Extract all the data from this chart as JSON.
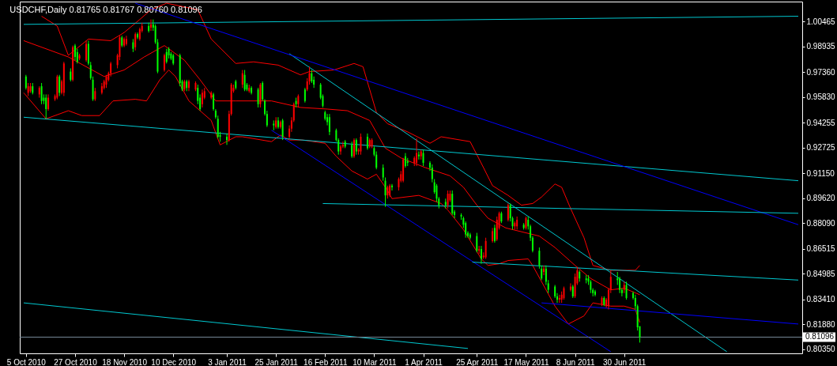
{
  "chart_data": {
    "type": "candlestick",
    "title": "USDCHF,Daily 0.81765 0.81767 0.80760 0.81096",
    "x": [
      "2010-10-05",
      "2010-10-06",
      "2010-10-07",
      "2010-10-08",
      "2010-10-11",
      "2010-10-12",
      "2010-10-13",
      "2010-10-14",
      "2010-10-15",
      "2010-10-18",
      "2010-10-19",
      "2010-10-20",
      "2010-10-21",
      "2010-10-22",
      "2010-10-25",
      "2010-10-26",
      "2010-10-27",
      "2010-10-28",
      "2010-10-29",
      "2010-11-01",
      "2010-11-02",
      "2010-11-03",
      "2010-11-04",
      "2010-11-05",
      "2010-11-08",
      "2010-11-09",
      "2010-11-10",
      "2010-11-11",
      "2010-11-12",
      "2010-11-15",
      "2010-11-16",
      "2010-11-17",
      "2010-11-18",
      "2010-11-19",
      "2010-11-22",
      "2010-11-23",
      "2010-11-24",
      "2010-11-25",
      "2010-11-26",
      "2010-11-29",
      "2010-11-30",
      "2010-12-01",
      "2010-12-02",
      "2010-12-03",
      "2010-12-06",
      "2010-12-07",
      "2010-12-08",
      "2010-12-09",
      "2010-12-10",
      "2010-12-13",
      "2010-12-14",
      "2010-12-15",
      "2010-12-16",
      "2010-12-17",
      "2010-12-20",
      "2010-12-21",
      "2010-12-22",
      "2010-12-23",
      "2010-12-24",
      "2010-12-27",
      "2010-12-28",
      "2010-12-29",
      "2010-12-30",
      "2010-12-31",
      "2011-01-03",
      "2011-01-04",
      "2011-01-05",
      "2011-01-06",
      "2011-01-07",
      "2011-01-10",
      "2011-01-11",
      "2011-01-12",
      "2011-01-13",
      "2011-01-14",
      "2011-01-17",
      "2011-01-18",
      "2011-01-19",
      "2011-01-20",
      "2011-01-21",
      "2011-01-24",
      "2011-01-25",
      "2011-01-26",
      "2011-01-27",
      "2011-01-28",
      "2011-01-31",
      "2011-02-01",
      "2011-02-02",
      "2011-02-03",
      "2011-02-04",
      "2011-02-07",
      "2011-02-08",
      "2011-02-09",
      "2011-02-10",
      "2011-02-11",
      "2011-02-14",
      "2011-02-15",
      "2011-02-16",
      "2011-02-17",
      "2011-02-18",
      "2011-02-21",
      "2011-02-22",
      "2011-02-23",
      "2011-02-24",
      "2011-02-25",
      "2011-02-28",
      "2011-03-01",
      "2011-03-02",
      "2011-03-03",
      "2011-03-04",
      "2011-03-07",
      "2011-03-08",
      "2011-03-09",
      "2011-03-10",
      "2011-03-11",
      "2011-03-14",
      "2011-03-15",
      "2011-03-16",
      "2011-03-17",
      "2011-03-18",
      "2011-03-21",
      "2011-03-22",
      "2011-03-23",
      "2011-03-24",
      "2011-03-25",
      "2011-03-28",
      "2011-03-29",
      "2011-03-30",
      "2011-03-31",
      "2011-04-01",
      "2011-04-04",
      "2011-04-05",
      "2011-04-06",
      "2011-04-07",
      "2011-04-08",
      "2011-04-11",
      "2011-04-12",
      "2011-04-13",
      "2011-04-14",
      "2011-04-15",
      "2011-04-18",
      "2011-04-19",
      "2011-04-20",
      "2011-04-21",
      "2011-04-22",
      "2011-04-25",
      "2011-04-26",
      "2011-04-27",
      "2011-04-28",
      "2011-04-29",
      "2011-05-02",
      "2011-05-03",
      "2011-05-04",
      "2011-05-05",
      "2011-05-06",
      "2011-05-09",
      "2011-05-10",
      "2011-05-11",
      "2011-05-12",
      "2011-05-13",
      "2011-05-16",
      "2011-05-17",
      "2011-05-18",
      "2011-05-19",
      "2011-05-20",
      "2011-05-23",
      "2011-05-24",
      "2011-05-25",
      "2011-05-26",
      "2011-05-27",
      "2011-05-30",
      "2011-05-31",
      "2011-06-01",
      "2011-06-02",
      "2011-06-03",
      "2011-06-06",
      "2011-06-07",
      "2011-06-08",
      "2011-06-09",
      "2011-06-10",
      "2011-06-13",
      "2011-06-14",
      "2011-06-15",
      "2011-06-16",
      "2011-06-17",
      "2011-06-20",
      "2011-06-21",
      "2011-06-22",
      "2011-06-23",
      "2011-06-24",
      "2011-06-27",
      "2011-06-28",
      "2011-06-29",
      "2011-06-30",
      "2011-07-01",
      "2011-07-04",
      "2011-07-05",
      "2011-07-06",
      "2011-07-07"
    ],
    "ohlc": [
      [
        0.971,
        0.972,
        0.963,
        0.964
      ],
      [
        0.961,
        0.967,
        0.959,
        0.965
      ],
      [
        0.962,
        0.967,
        0.961,
        0.965
      ],
      [
        0.965,
        0.967,
        0.96,
        0.961
      ],
      [
        0.96,
        0.965,
        0.958,
        0.964
      ],
      [
        0.965,
        0.967,
        0.954,
        0.956
      ],
      [
        0.958,
        0.96,
        0.954,
        0.956
      ],
      [
        0.958,
        0.96,
        0.945,
        0.951
      ],
      [
        0.951,
        0.96,
        0.95,
        0.958
      ],
      [
        0.957,
        0.96,
        0.956,
        0.959
      ],
      [
        0.958,
        0.972,
        0.957,
        0.971
      ],
      [
        0.971,
        0.972,
        0.959,
        0.961
      ],
      [
        0.961,
        0.969,
        0.96,
        0.968
      ],
      [
        0.961,
        0.98,
        0.959,
        0.979
      ],
      [
        0.974,
        0.976,
        0.968,
        0.969
      ],
      [
        0.969,
        0.99,
        0.968,
        0.989
      ],
      [
        0.99,
        0.991,
        0.981,
        0.983
      ],
      [
        0.986,
        0.988,
        0.979,
        0.98
      ],
      [
        0.982,
        0.985,
        0.981,
        0.984
      ],
      [
        0.981,
        0.993,
        0.98,
        0.991
      ],
      [
        0.991,
        0.993,
        0.978,
        0.979
      ],
      [
        0.978,
        0.98,
        0.969,
        0.97
      ],
      [
        0.969,
        0.971,
        0.956,
        0.957
      ],
      [
        0.957,
        0.964,
        0.956,
        0.962
      ],
      [
        0.961,
        0.967,
        0.96,
        0.965
      ],
      [
        0.964,
        0.969,
        0.963,
        0.968
      ],
      [
        0.966,
        0.972,
        0.964,
        0.971
      ],
      [
        0.969,
        0.974,
        0.968,
        0.973
      ],
      [
        0.973,
        0.98,
        0.971,
        0.979
      ],
      [
        0.978,
        0.985,
        0.976,
        0.984
      ],
      [
        0.983,
        0.996,
        0.981,
        0.995
      ],
      [
        0.995,
        0.996,
        0.989,
        0.99
      ],
      [
        0.99,
        0.995,
        0.989,
        0.994
      ],
      [
        0.991,
        0.996,
        0.99,
        0.994
      ],
      [
        0.992,
        0.994,
        0.986,
        0.988
      ],
      [
        0.989,
        0.998,
        0.987,
        0.997
      ],
      [
        0.997,
        0.998,
        0.994,
        0.995
      ],
      [
        0.994,
        1.001,
        0.993,
        1.0
      ],
      [
        0.999,
        1.004,
        0.998,
        1.002
      ],
      [
        1.002,
        1.004,
        0.998,
        0.999
      ],
      [
        1.001,
        1.006,
        0.999,
        1.003
      ],
      [
        1.003,
        1.006,
        0.999,
        1.001
      ],
      [
        1.002,
        1.003,
        0.991,
        0.992
      ],
      [
        0.992,
        0.994,
        0.973,
        0.974
      ],
      [
        0.975,
        0.985,
        0.974,
        0.984
      ],
      [
        0.986,
        0.988,
        0.979,
        0.98
      ],
      [
        0.988,
        0.989,
        0.982,
        0.984
      ],
      [
        0.985,
        0.986,
        0.981,
        0.982
      ],
      [
        0.984,
        0.985,
        0.978,
        0.979
      ],
      [
        0.984,
        0.985,
        0.965,
        0.967
      ],
      [
        0.968,
        0.969,
        0.962,
        0.963
      ],
      [
        0.963,
        0.969,
        0.962,
        0.968
      ],
      [
        0.968,
        0.969,
        0.962,
        0.964
      ],
      [
        0.964,
        0.969,
        0.962,
        0.968
      ],
      [
        0.963,
        0.968,
        0.962,
        0.967
      ],
      [
        0.964,
        0.966,
        0.954,
        0.956
      ],
      [
        0.958,
        0.96,
        0.95,
        0.951
      ],
      [
        0.954,
        0.963,
        0.952,
        0.961
      ],
      [
        0.958,
        0.964,
        0.957,
        0.962
      ],
      [
        0.958,
        0.962,
        0.957,
        0.961
      ],
      [
        0.96,
        0.961,
        0.95,
        0.951
      ],
      [
        0.95,
        0.951,
        0.945,
        0.946
      ],
      [
        0.945,
        0.947,
        0.933,
        0.934
      ],
      [
        0.935,
        0.937,
        0.931,
        0.934
      ],
      [
        0.934,
        0.936,
        0.929,
        0.932
      ],
      [
        0.932,
        0.95,
        0.931,
        0.948
      ],
      [
        0.948,
        0.967,
        0.947,
        0.966
      ],
      [
        0.962,
        0.966,
        0.961,
        0.964
      ],
      [
        0.968,
        0.969,
        0.963,
        0.964
      ],
      [
        0.966,
        0.975,
        0.964,
        0.973
      ],
      [
        0.972,
        0.975,
        0.962,
        0.963
      ],
      [
        0.966,
        0.967,
        0.962,
        0.963
      ],
      [
        0.962,
        0.966,
        0.961,
        0.964
      ],
      [
        0.964,
        0.965,
        0.96,
        0.961
      ],
      [
        0.963,
        0.964,
        0.952,
        0.954
      ],
      [
        0.954,
        0.967,
        0.952,
        0.966
      ],
      [
        0.967,
        0.968,
        0.956,
        0.957
      ],
      [
        0.956,
        0.957,
        0.947,
        0.948
      ],
      [
        0.948,
        0.95,
        0.94,
        0.941
      ],
      [
        0.942,
        0.944,
        0.938,
        0.941
      ],
      [
        0.94,
        0.946,
        0.939,
        0.944
      ],
      [
        0.944,
        0.946,
        0.939,
        0.94
      ],
      [
        0.94,
        0.944,
        0.939,
        0.943
      ],
      [
        0.944,
        0.945,
        0.932,
        0.934
      ],
      [
        0.934,
        0.941,
        0.933,
        0.939
      ],
      [
        0.939,
        0.946,
        0.937,
        0.944
      ],
      [
        0.944,
        0.955,
        0.943,
        0.954
      ],
      [
        0.956,
        0.958,
        0.952,
        0.954
      ],
      [
        0.954,
        0.96,
        0.952,
        0.959
      ],
      [
        0.963,
        0.964,
        0.955,
        0.956
      ],
      [
        0.963,
        0.97,
        0.962,
        0.968
      ],
      [
        0.968,
        0.977,
        0.966,
        0.973
      ],
      [
        0.973,
        0.975,
        0.967,
        0.968
      ],
      [
        0.969,
        0.971,
        0.964,
        0.966
      ],
      [
        0.966,
        0.967,
        0.957,
        0.958
      ],
      [
        0.959,
        0.96,
        0.952,
        0.953
      ],
      [
        0.949,
        0.95,
        0.944,
        0.945
      ],
      [
        0.946,
        0.948,
        0.941,
        0.943
      ],
      [
        0.946,
        0.948,
        0.935,
        0.937
      ],
      [
        0.938,
        0.939,
        0.931,
        0.932
      ],
      [
        0.932,
        0.933,
        0.923,
        0.925
      ],
      [
        0.925,
        0.929,
        0.923,
        0.928
      ],
      [
        0.928,
        0.931,
        0.927,
        0.929
      ],
      [
        0.931,
        0.932,
        0.927,
        0.928
      ],
      [
        0.929,
        0.931,
        0.921,
        0.922
      ],
      [
        0.922,
        0.933,
        0.921,
        0.932
      ],
      [
        0.932,
        0.933,
        0.923,
        0.925
      ],
      [
        0.925,
        0.927,
        0.923,
        0.926
      ],
      [
        0.925,
        0.936,
        0.923,
        0.934
      ],
      [
        0.934,
        0.936,
        0.926,
        0.927
      ],
      [
        0.928,
        0.933,
        0.927,
        0.932
      ],
      [
        0.928,
        0.933,
        0.927,
        0.932
      ],
      [
        0.927,
        0.928,
        0.922,
        0.923
      ],
      [
        0.923,
        0.925,
        0.914,
        0.915
      ],
      [
        0.915,
        0.917,
        0.907,
        0.909
      ],
      [
        0.907,
        0.909,
        0.891,
        0.898
      ],
      [
        0.898,
        0.904,
        0.896,
        0.903
      ],
      [
        0.898,
        0.905,
        0.897,
        0.904
      ],
      [
        0.904,
        0.905,
        0.901,
        0.903
      ],
      [
        0.903,
        0.909,
        0.901,
        0.908
      ],
      [
        0.907,
        0.913,
        0.906,
        0.911
      ],
      [
        0.907,
        0.921,
        0.906,
        0.92
      ],
      [
        0.922,
        0.924,
        0.915,
        0.916
      ],
      [
        0.919,
        0.921,
        0.916,
        0.918
      ],
      [
        0.918,
        0.922,
        0.916,
        0.921
      ],
      [
        0.918,
        0.933,
        0.916,
        0.924
      ],
      [
        0.923,
        0.925,
        0.92,
        0.922
      ],
      [
        0.922,
        0.926,
        0.92,
        0.925
      ],
      [
        0.924,
        0.926,
        0.916,
        0.918
      ],
      [
        0.918,
        0.919,
        0.913,
        0.915
      ],
      [
        0.915,
        0.917,
        0.906,
        0.908
      ],
      [
        0.906,
        0.908,
        0.899,
        0.9
      ],
      [
        0.904,
        0.905,
        0.894,
        0.896
      ],
      [
        0.896,
        0.897,
        0.89,
        0.892
      ],
      [
        0.894,
        0.896,
        0.89,
        0.892
      ],
      [
        0.892,
        0.901,
        0.89,
        0.899
      ],
      [
        0.895,
        0.901,
        0.894,
        0.899
      ],
      [
        0.899,
        0.901,
        0.886,
        0.887
      ],
      [
        0.888,
        0.889,
        0.884,
        0.886
      ],
      [
        0.886,
        0.887,
        0.883,
        0.885
      ],
      [
        0.884,
        0.885,
        0.878,
        0.88
      ],
      [
        0.881,
        0.882,
        0.872,
        0.874
      ],
      [
        0.875,
        0.876,
        0.872,
        0.873
      ],
      [
        0.874,
        0.875,
        0.871,
        0.872
      ],
      [
        0.873,
        0.875,
        0.863,
        0.864
      ],
      [
        0.864,
        0.867,
        0.862,
        0.865
      ],
      [
        0.865,
        0.867,
        0.856,
        0.859
      ],
      [
        0.86,
        0.863,
        0.859,
        0.861
      ],
      [
        0.86,
        0.872,
        0.859,
        0.87
      ],
      [
        0.87,
        0.878,
        0.869,
        0.876
      ],
      [
        0.878,
        0.88,
        0.869,
        0.87
      ],
      [
        0.871,
        0.885,
        0.87,
        0.883
      ],
      [
        0.878,
        0.888,
        0.877,
        0.887
      ],
      [
        0.887,
        0.888,
        0.881,
        0.882
      ],
      [
        0.883,
        0.893,
        0.882,
        0.892
      ],
      [
        0.892,
        0.893,
        0.882,
        0.884
      ],
      [
        0.884,
        0.885,
        0.877,
        0.879
      ],
      [
        0.879,
        0.882,
        0.877,
        0.881
      ],
      [
        0.879,
        0.885,
        0.877,
        0.883
      ],
      [
        0.88,
        0.881,
        0.877,
        0.878
      ],
      [
        0.878,
        0.885,
        0.877,
        0.884
      ],
      [
        0.883,
        0.885,
        0.877,
        0.879
      ],
      [
        0.879,
        0.88,
        0.87,
        0.872
      ],
      [
        0.872,
        0.873,
        0.863,
        0.864
      ],
      [
        0.864,
        0.866,
        0.853,
        0.855
      ],
      [
        0.853,
        0.855,
        0.846,
        0.847
      ],
      [
        0.851,
        0.855,
        0.849,
        0.853
      ],
      [
        0.853,
        0.855,
        0.843,
        0.845
      ],
      [
        0.844,
        0.846,
        0.838,
        0.84
      ],
      [
        0.842,
        0.843,
        0.835,
        0.836
      ],
      [
        0.836,
        0.838,
        0.832,
        0.834
      ],
      [
        0.834,
        0.837,
        0.832,
        0.835
      ],
      [
        0.834,
        0.839,
        0.832,
        0.837
      ],
      [
        0.835,
        0.842,
        0.834,
        0.841
      ],
      [
        0.84,
        0.844,
        0.839,
        0.842
      ],
      [
        0.842,
        0.843,
        0.835,
        0.836
      ],
      [
        0.836,
        0.85,
        0.835,
        0.848
      ],
      [
        0.844,
        0.854,
        0.843,
        0.852
      ],
      [
        0.851,
        0.852,
        0.845,
        0.847
      ],
      [
        0.847,
        0.849,
        0.844,
        0.846
      ],
      [
        0.847,
        0.849,
        0.843,
        0.845
      ],
      [
        0.845,
        0.846,
        0.838,
        0.84
      ],
      [
        0.84,
        0.841,
        0.836,
        0.838
      ],
      [
        0.839,
        0.84,
        0.836,
        0.837
      ],
      [
        0.831,
        0.836,
        0.83,
        0.835
      ],
      [
        0.835,
        0.836,
        0.83,
        0.831
      ],
      [
        0.83,
        0.835,
        0.829,
        0.834
      ],
      [
        0.83,
        0.841,
        0.828,
        0.84
      ],
      [
        0.84,
        0.852,
        0.838,
        0.848
      ],
      [
        0.847,
        0.851,
        0.843,
        0.846
      ],
      [
        0.847,
        0.848,
        0.838,
        0.84
      ],
      [
        0.84,
        0.841,
        0.836,
        0.838
      ],
      [
        0.84,
        0.845,
        0.838,
        0.843
      ],
      [
        0.843,
        0.845,
        0.834,
        0.835
      ],
      [
        0.838,
        0.839,
        0.834,
        0.835
      ],
      [
        0.835,
        0.837,
        0.828,
        0.83
      ],
      [
        0.83,
        0.831,
        0.815,
        0.817
      ],
      [
        0.81765,
        0.81767,
        0.8076,
        0.81096
      ]
    ],
    "colors": [
      "#00ff00",
      "#ff0000",
      "#ff0000",
      "#00ff00",
      "#ff0000",
      "#00ff00",
      "#00ff00",
      "#00ff00",
      "#ff0000",
      "#ff0000",
      "#ff0000",
      "#00ff00",
      "#ff0000",
      "#ff0000",
      "#00ff00",
      "#ff0000",
      "#00ff00",
      "#00ff00",
      "#ff0000",
      "#ff0000",
      "#00ff00",
      "#00ff00",
      "#00ff00",
      "#ff0000",
      "#ff0000",
      "#ff0000",
      "#ff0000",
      "#ff0000",
      "#ff0000",
      "#ff0000",
      "#ff0000",
      "#00ff00",
      "#ff0000",
      "#ff0000",
      "#00ff00",
      "#ff0000",
      "#00ff00",
      "#ff0000",
      "#ff0000",
      "#00ff00",
      "#ff0000",
      "#00ff00",
      "#00ff00",
      "#00ff00",
      "#ff0000",
      "#00ff00",
      "#00ff00",
      "#00ff00",
      "#00ff00",
      "#00ff00",
      "#00ff00",
      "#ff0000",
      "#00ff00",
      "#ff0000",
      "#ff0000",
      "#00ff00",
      "#00ff00",
      "#ff0000",
      "#ff0000",
      "#ff0000",
      "#00ff00",
      "#00ff00",
      "#00ff00",
      "#00ff00",
      "#00ff00",
      "#ff0000",
      "#ff0000",
      "#ff0000",
      "#00ff00",
      "#ff0000",
      "#00ff00",
      "#00ff00",
      "#ff0000",
      "#00ff00",
      "#00ff00",
      "#ff0000",
      "#00ff00",
      "#00ff00",
      "#00ff00",
      "#00ff00",
      "#ff0000",
      "#00ff00",
      "#ff0000",
      "#00ff00",
      "#ff0000",
      "#ff0000",
      "#ff0000",
      "#00ff00",
      "#ff0000",
      "#00ff00",
      "#ff0000",
      "#ff0000",
      "#00ff00",
      "#00ff00",
      "#00ff00",
      "#00ff00",
      "#00ff00",
      "#00ff00",
      "#00ff00",
      "#00ff00",
      "#00ff00",
      "#ff0000",
      "#ff0000",
      "#00ff00",
      "#00ff00",
      "#ff0000",
      "#00ff00",
      "#ff0000",
      "#ff0000",
      "#00ff00",
      "#ff0000",
      "#ff0000",
      "#00ff00",
      "#00ff00",
      "#00ff00",
      "#00ff00",
      "#ff0000",
      "#ff0000",
      "#00ff00",
      "#ff0000",
      "#ff0000",
      "#ff0000",
      "#00ff00",
      "#00ff00",
      "#ff0000",
      "#ff0000",
      "#00ff00",
      "#ff0000",
      "#00ff00",
      "#00ff00",
      "#00ff00",
      "#00ff00",
      "#00ff00",
      "#00ff00",
      "#00ff00",
      "#ff0000",
      "#ff0000",
      "#00ff00",
      "#00ff00",
      "#00ff00",
      "#00ff00",
      "#00ff00",
      "#00ff00",
      "#00ff00",
      "#00ff00",
      "#ff0000",
      "#00ff00",
      "#ff0000",
      "#ff0000",
      "#ff0000",
      "#00ff00",
      "#ff0000",
      "#ff0000",
      "#00ff00",
      "#ff0000",
      "#00ff00",
      "#00ff00",
      "#ff0000",
      "#ff0000",
      "#00ff00",
      "#ff0000",
      "#00ff00",
      "#00ff00",
      "#00ff00",
      "#00ff00",
      "#00ff00",
      "#ff0000",
      "#00ff00",
      "#00ff00",
      "#00ff00",
      "#00ff00",
      "#ff0000",
      "#ff0000",
      "#ff0000",
      "#ff0000",
      "#00ff00",
      "#ff0000",
      "#ff0000",
      "#00ff00",
      "#00ff00",
      "#00ff00",
      "#00ff00",
      "#00ff00",
      "#00ff00",
      "#ff0000",
      "#00ff00",
      "#ff0000",
      "#ff0000",
      "#ff0000",
      "#00ff00",
      "#00ff00",
      "#00ff00",
      "#ff0000",
      "#00ff00",
      "#00ff00",
      "#00ff00",
      "#00ff00",
      "#00ff00"
    ],
    "series": [
      {
        "type": "line",
        "color": "#ff0000",
        "x": [
          "2010-10-04",
          "2010-10-24",
          "2010-11-09",
          "2010-11-18",
          "2010-11-27",
          "2010-12-06",
          "2010-12-15",
          "2010-12-22",
          "2010-12-29",
          "2011-01-07",
          "2011-01-23",
          "2011-02-05",
          "2011-02-17",
          "2011-02-26",
          "2011-03-08",
          "2011-03-15",
          "2011-03-22",
          "2011-04-02",
          "2011-04-13",
          "2011-04-19",
          "2011-04-25",
          "2011-04-30",
          "2011-05-08",
          "2011-05-23",
          "2011-05-30",
          "2011-06-08",
          "2011-06-15",
          "2011-06-24",
          "2011-06-30",
          "2011-07-07"
        ],
        "values": [
          0.993,
          0.983,
          0.971,
          0.975,
          0.983,
          0.99,
          0.981,
          0.969,
          0.956,
          0.956,
          0.956,
          0.952,
          0.951,
          0.95,
          0.944,
          0.927,
          0.921,
          0.915,
          0.91,
          0.903,
          0.892,
          0.884,
          0.878,
          0.873,
          0.866,
          0.855,
          0.847,
          0.84,
          0.841,
          0.837
        ]
      },
      {
        "type": "line",
        "color": "#ff0000",
        "x": [
          "2010-10-12",
          "2010-10-19",
          "2010-10-24",
          "2010-11-02",
          "2010-11-12",
          "2010-11-18",
          "2010-11-25",
          "2010-11-30",
          "2010-12-07",
          "2010-12-21",
          "2010-12-27",
          "2011-01-07",
          "2011-01-15",
          "2011-01-26",
          "2011-02-05",
          "2011-02-09",
          "2011-02-20",
          "2011-03-01",
          "2011-03-05",
          "2011-03-08",
          "2011-03-11",
          "2011-03-16",
          "2011-03-25",
          "2011-04-04",
          "2011-04-09",
          "2011-04-22",
          "2011-04-28",
          "2011-05-02",
          "2011-05-09",
          "2011-05-15",
          "2011-05-20",
          "2011-05-24",
          "2011-05-30",
          "2011-06-02",
          "2011-06-06",
          "2011-06-12",
          "2011-06-16",
          "2011-06-24",
          "2011-07-05",
          "2011-07-07"
        ],
        "values": [
          1.008,
          1.002,
          0.984,
          0.994,
          0.993,
          0.998,
          1.006,
          1.012,
          1.016,
          1.012,
          0.994,
          0.979,
          0.98,
          0.978,
          0.972,
          0.974,
          0.975,
          0.979,
          0.977,
          0.963,
          0.949,
          0.942,
          0.937,
          0.93,
          0.934,
          0.931,
          0.915,
          0.904,
          0.898,
          0.892,
          0.893,
          0.897,
          0.905,
          0.903,
          0.89,
          0.872,
          0.855,
          0.852,
          0.852,
          0.855
        ]
      },
      {
        "type": "line",
        "color": "#ff0000",
        "x": [
          "2010-10-04",
          "2010-10-14",
          "2010-10-24",
          "2010-10-30",
          "2010-11-07",
          "2010-11-13",
          "2010-11-23",
          "2010-11-28",
          "2010-12-04",
          "2010-12-08",
          "2010-12-11",
          "2010-12-17",
          "2010-12-27",
          "2010-12-31",
          "2011-01-07",
          "2011-01-10",
          "2011-01-23",
          "2011-01-27",
          "2011-01-31",
          "2011-02-06",
          "2011-02-16",
          "2011-02-21",
          "2011-02-28",
          "2011-03-07",
          "2011-03-11",
          "2011-03-16",
          "2011-03-18",
          "2011-03-30",
          "2011-04-09",
          "2011-04-12",
          "2011-04-19",
          "2011-04-27",
          "2011-04-30",
          "2011-05-05",
          "2011-05-09",
          "2011-05-18",
          "2011-05-20",
          "2011-05-30",
          "2011-06-05",
          "2011-06-12",
          "2011-06-16",
          "2011-06-24",
          "2011-06-30",
          "2011-07-05",
          "2011-07-07"
        ],
        "values": [
          0.961,
          0.945,
          0.95,
          0.947,
          0.947,
          0.956,
          0.957,
          0.956,
          0.969,
          0.975,
          0.971,
          0.956,
          0.944,
          0.929,
          0.934,
          0.934,
          0.931,
          0.935,
          0.932,
          0.932,
          0.93,
          0.922,
          0.913,
          0.908,
          0.911,
          0.901,
          0.896,
          0.898,
          0.893,
          0.889,
          0.877,
          0.859,
          0.855,
          0.856,
          0.858,
          0.859,
          0.855,
          0.83,
          0.819,
          0.824,
          0.832,
          0.83,
          0.83,
          0.828,
          0.82
        ]
      },
      {
        "type": "line",
        "color": "#00c8d0",
        "x": [
          "2010-10-04",
          "2011-09-16"
        ],
        "values": [
          1.003,
          1.008
        ]
      },
      {
        "type": "line",
        "color": "#00c8d0",
        "x": [
          "2010-10-04",
          "2011-09-16"
        ],
        "values": [
          0.946,
          0.907
        ]
      },
      {
        "type": "line",
        "color": "#00c8d0",
        "x": [
          "2011-01-31",
          "2011-08-15"
        ],
        "values": [
          0.985,
          0.802
        ]
      },
      {
        "type": "line",
        "color": "#0000ff",
        "x": [
          "2010-11-23",
          "2011-09-16"
        ],
        "values": [
          1.016,
          0.88
        ]
      },
      {
        "type": "line",
        "color": "#0000ff",
        "x": [
          "2011-01-23",
          "2011-06-24"
        ],
        "values": [
          0.938,
          0.802
        ]
      },
      {
        "type": "line",
        "color": "#00c8d0",
        "x": [
          "2011-02-15",
          "2011-09-16"
        ],
        "values": [
          0.893,
          0.887
        ]
      },
      {
        "type": "line",
        "color": "#00c8d0",
        "x": [
          "2011-04-23",
          "2011-09-16"
        ],
        "values": [
          0.857,
          0.846
        ]
      },
      {
        "type": "line",
        "color": "#0000ff",
        "x": [
          "2011-05-24",
          "2011-09-16"
        ],
        "values": [
          0.832,
          0.819
        ]
      },
      {
        "type": "line",
        "color": "#00c8d0",
        "x": [
          "2010-10-04",
          "2011-04-21"
        ],
        "values": [
          0.832,
          0.804
        ]
      }
    ],
    "ref_lines": [
      {
        "axis": "y",
        "value": 0.81096,
        "label": "0.81096",
        "color": "#778899"
      }
    ],
    "xlim": [
      "2010-10-04",
      "2011-09-16"
    ],
    "xticks": [
      {
        "value": "2010-10-05",
        "label": "5 Oct 2010"
      },
      {
        "value": "2010-10-27",
        "label": "27 Oct 2010"
      },
      {
        "value": "2010-11-18",
        "label": "18 Nov 2010"
      },
      {
        "value": "2010-12-10",
        "label": "10 Dec 2010"
      },
      {
        "value": "2011-01-03",
        "label": "3 Jan 2011"
      },
      {
        "value": "2011-01-25",
        "label": "25 Jan 2011"
      },
      {
        "value": "2011-02-16",
        "label": "16 Feb 2011"
      },
      {
        "value": "2011-03-10",
        "label": "10 Mar 2011"
      },
      {
        "value": "2011-04-01",
        "label": "1 Apr 2011"
      },
      {
        "value": "2011-04-25",
        "label": "25 Apr 2011"
      },
      {
        "value": "2011-05-17",
        "label": "17 May 2011"
      },
      {
        "value": "2011-06-08",
        "label": "8 Jun 2011"
      },
      {
        "value": "2011-06-30",
        "label": "30 Jun 2011"
      }
    ],
    "ylim": [
      0.801,
      1.017
    ],
    "yticks": [
      1.00465,
      0.98935,
      {
        "value": 0.9736,
        "label": "0.97360"
      },
      {
        "value": 0.9583,
        "label": "0.95830"
      },
      0.94255,
      0.92725,
      {
        "value": 0.9115,
        "label": "0.91150"
      },
      {
        "value": 0.8962,
        "label": "0.89620"
      },
      {
        "value": 0.8809,
        "label": "0.88090"
      },
      0.86515,
      0.84985,
      {
        "value": 0.8341,
        "label": "0.83410"
      },
      {
        "value": 0.8188,
        "label": "0.81880"
      },
      {
        "value": 0.8035,
        "label": "0.80350"
      }
    ]
  }
}
